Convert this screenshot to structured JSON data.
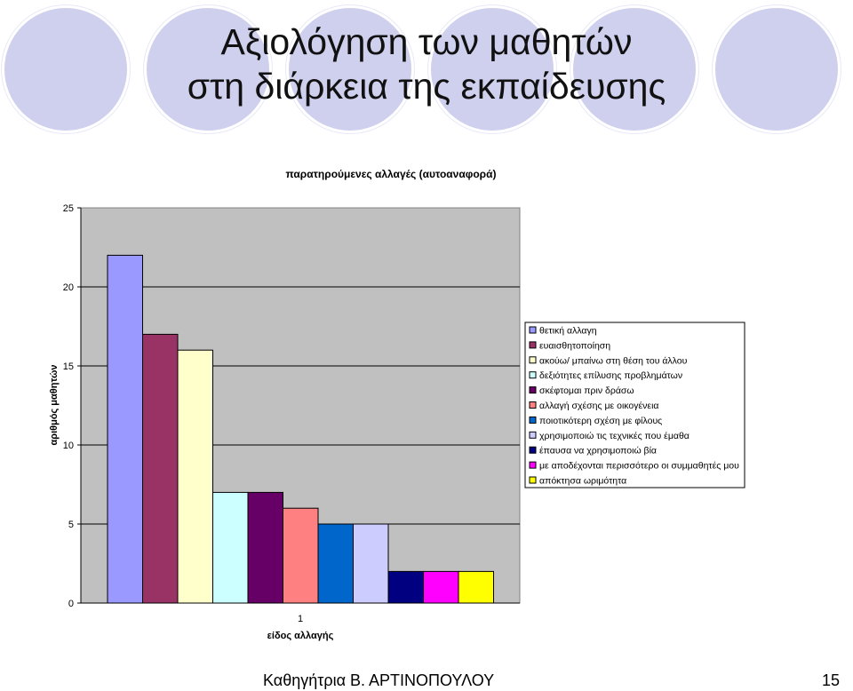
{
  "slide": {
    "title_line1": "Αξιολόγηση των μαθητών",
    "title_line2": "στη διάρκεια της εκπαίδευσης",
    "footer_author": "Καθηγήτρια Β. ΑΡΤΙΝΟΠΟΥΛΟΥ",
    "footer_page": "15"
  },
  "chart_data": {
    "type": "bar",
    "title": "παρατηρούμενες αλλαγές (αυτοαναφορά)",
    "xlabel": "είδος αλλαγής",
    "ylabel": "αριθμός μαθητών",
    "categories": [
      "1"
    ],
    "ylim": [
      0,
      25
    ],
    "yticks": [
      0,
      5,
      10,
      15,
      20,
      25
    ],
    "grid": true,
    "legend_position": "right",
    "plot_background": "#c0c0c0",
    "series": [
      {
        "name": "θετική αλλαγη",
        "values": [
          22
        ],
        "color": "#9999ff"
      },
      {
        "name": "ευαισθητοποίηση",
        "values": [
          17
        ],
        "color": "#993366"
      },
      {
        "name": "ακούω/ μπαίνω στη θέση του άλλου",
        "values": [
          16
        ],
        "color": "#ffffcc"
      },
      {
        "name": "δεξιότητες επίλυσης προβλημάτων",
        "values": [
          7
        ],
        "color": "#ccffff"
      },
      {
        "name": "σκέφτομαι πριν δράσω",
        "values": [
          7
        ],
        "color": "#660066"
      },
      {
        "name": "αλλαγή σχέσης με οικογένεια",
        "values": [
          6
        ],
        "color": "#ff8080"
      },
      {
        "name": "ποιοτικότερη σχέση με φίλους",
        "values": [
          5
        ],
        "color": "#0066cc"
      },
      {
        "name": "χρησιμοποιώ τις τεχνικές που έμαθα",
        "values": [
          5
        ],
        "color": "#ccccff"
      },
      {
        "name": "έπαυσα να χρησιμοποιώ βία",
        "values": [
          2
        ],
        "color": "#000080"
      },
      {
        "name": "με αποδέχονται περισσότερο οι συμμαθητές μου",
        "values": [
          2
        ],
        "color": "#ff00ff"
      },
      {
        "name": "απόκτησα ωριμότητα",
        "values": [
          2
        ],
        "color": "#ffff00"
      }
    ]
  }
}
